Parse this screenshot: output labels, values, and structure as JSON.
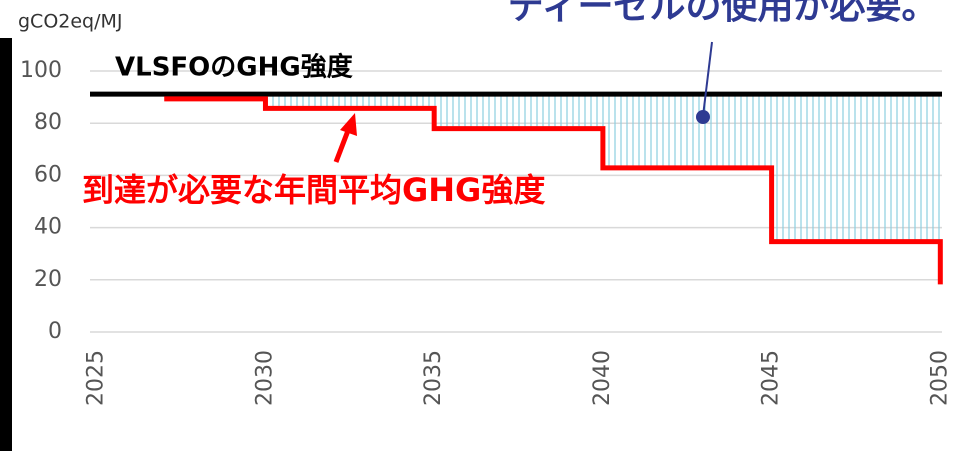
{
  "chart_data": {
    "type": "line",
    "ylabel": "gCO2eq/MJ",
    "xlim": [
      2024.8,
      2050.05
    ],
    "xticks": [
      2025,
      2030,
      2035,
      2040,
      2045,
      2050
    ],
    "ylim": [
      0,
      100
    ],
    "yticks": [
      0,
      20,
      40,
      60,
      80,
      100
    ],
    "grid": true,
    "series": [
      {
        "color": "#000000",
        "x": [
          2024.8,
          2050.05
        ],
        "values": [
          91.16,
          91.16
        ]
      },
      {
        "color": "#ff0000",
        "x": [
          2027,
          2030,
          2030,
          2035,
          2035,
          2040,
          2040,
          2045,
          2045,
          2050,
          2050
        ],
        "values": [
          89.34,
          89.34,
          85.69,
          85.69,
          77.94,
          77.94,
          62.9,
          62.9,
          34.64,
          34.64,
          18.23
        ]
      }
    ],
    "annotations": [
      "VLSFOのGHG強度",
      "到達が必要な年間平均GHG強度",
      "ディーゼルの使用が必要。"
    ]
  }
}
